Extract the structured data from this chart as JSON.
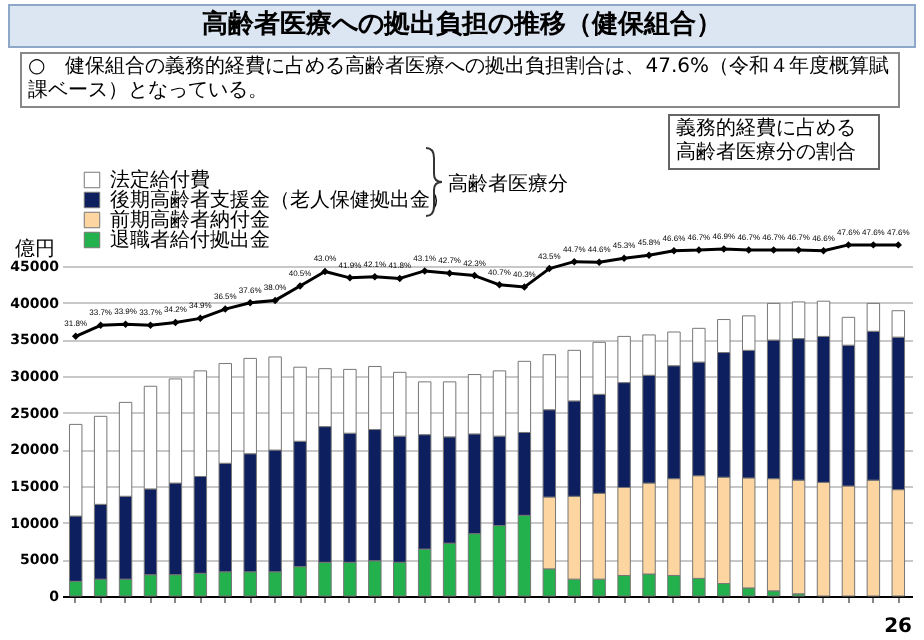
{
  "chart_data": {
    "type": "bar",
    "title": "高齢者医療への拠出負担の推移（健保組合）",
    "subtitle": "○　健保組合の義務的経費に占める高齢者医療への拠出負担割合は、47.6%（令和４年度概算賦課ベース）となっている。",
    "ylabel": "億円",
    "annotations": [
      "義務的経費に占める高齢者医療分の割合",
      "高齢者医療分",
      "26"
    ],
    "categories": [
      null,
      null,
      null,
      null,
      null,
      null,
      null,
      null,
      null,
      null,
      null,
      null,
      null,
      null,
      null,
      null,
      null,
      null,
      null,
      null,
      null,
      null,
      null,
      null,
      null,
      null,
      null,
      null,
      null,
      null,
      null,
      null,
      null,
      null
    ],
    "stacked": true,
    "ylim": [
      0,
      45000
    ],
    "yticks": [
      0,
      5000,
      10000,
      15000,
      20000,
      25000,
      30000,
      35000,
      40000,
      45000
    ],
    "grid": "y",
    "legend": "top left",
    "tick_labels": "y",
    "marker": "diamond",
    "series": [
      {
        "name": "退職者給付拠出金",
        "color": "#22b14c",
        "values": [
          2000,
          2300,
          2300,
          2900,
          2900,
          3100,
          3300,
          3300,
          3300,
          4000,
          4600,
          4600,
          4800,
          4600,
          6400,
          7200,
          8500,
          9600,
          11000,
          3700,
          2300,
          2300,
          2800,
          3000,
          2800,
          2400,
          1700,
          1100,
          700,
          300,
          null,
          null,
          null,
          null
        ]
      },
      {
        "name": "前期高齢者納付金",
        "color": "#fcd5a0",
        "values": [
          null,
          null,
          null,
          null,
          null,
          null,
          null,
          null,
          null,
          null,
          null,
          null,
          null,
          null,
          null,
          null,
          null,
          null,
          null,
          9800,
          11300,
          11700,
          12000,
          12400,
          13200,
          14000,
          14500,
          15000,
          15300,
          15500,
          15500,
          15000,
          15800,
          14500
        ]
      },
      {
        "name": "後期高齢者支援金（老人保健拠出金）",
        "color": "#0d1f5e",
        "values": [
          8900,
          10200,
          11300,
          11700,
          12500,
          13200,
          14800,
          16100,
          16600,
          17100,
          18500,
          17600,
          17900,
          17200,
          15600,
          14500,
          13600,
          12200,
          11300,
          11900,
          13000,
          13500,
          14300,
          14700,
          15400,
          15500,
          17000,
          17400,
          18900,
          19300,
          19900,
          19200,
          20300,
          20800
        ]
      },
      {
        "name": "法定給付費",
        "color": "#ffffff",
        "values": [
          12500,
          12000,
          12800,
          14000,
          14200,
          14400,
          13600,
          13000,
          12700,
          10100,
          7900,
          8700,
          8600,
          8700,
          7200,
          7500,
          8100,
          8900,
          9700,
          7500,
          6900,
          7100,
          6300,
          5500,
          4600,
          4600,
          4500,
          4700,
          5000,
          5000,
          4800,
          3800,
          3800,
          3600
        ]
      },
      {
        "type": "line",
        "axis": "y2",
        "color": "#000000",
        "values": [
          31.8,
          33.7,
          33.9,
          33.7,
          34.2,
          34.9,
          36.5,
          37.6,
          38.0,
          40.5,
          43.0,
          41.9,
          42.1,
          41.8,
          43.1,
          42.7,
          42.3,
          40.7,
          40.3,
          43.5,
          44.7,
          44.6,
          45.3,
          45.8,
          46.6,
          46.7,
          46.9,
          46.7,
          46.7,
          46.7,
          46.6,
          47.6,
          47.6,
          47.6
        ],
        "value_labels": [
          "31.8%",
          "33.7%",
          "33.9%",
          "33.7%",
          "34.2%",
          "34.9%",
          "36.5%",
          "37.6%",
          "38.0%",
          "40.5%",
          "43.0%",
          "41.9%",
          "42.1%",
          "41.8%",
          "43.1%",
          "42.7%",
          "42.3%",
          "40.7%",
          "40.3%",
          "43.5%",
          "44.7%",
          "44.6%",
          "45.3%",
          "45.8%",
          "46.6%",
          "46.7%",
          "46.9%",
          "46.7%",
          "46.7%",
          "46.7%",
          "46.6%",
          "47.6%",
          "47.6%",
          "47.6%"
        ]
      }
    ]
  }
}
